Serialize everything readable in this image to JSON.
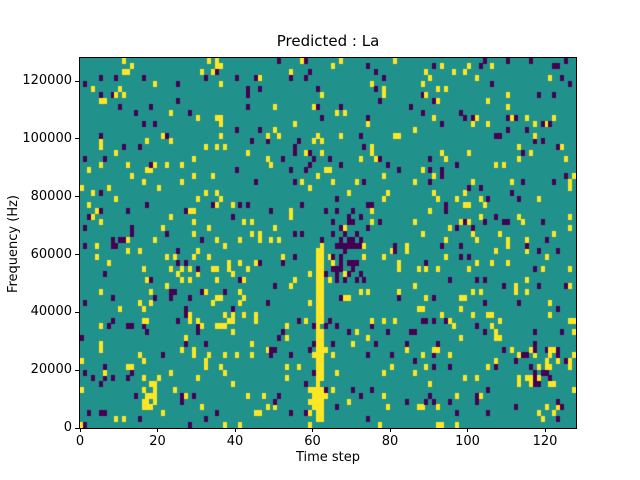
{
  "chart_data": {
    "type": "heatmap",
    "title": "Predicted : La",
    "xlabel": "Time step",
    "ylabel": "Frequency (Hz)",
    "x_range": [
      0,
      128
    ],
    "y_range": [
      0,
      128000
    ],
    "x_ticks": [
      0,
      20,
      40,
      60,
      80,
      100,
      120
    ],
    "y_ticks": [
      0,
      20000,
      40000,
      60000,
      80000,
      100000,
      120000
    ],
    "grid": {
      "cols": 128,
      "rows": 64
    },
    "colormap": {
      "name": "viridis-like-3-level",
      "background": "#21918c",
      "high": "#fde725",
      "low": "#440154"
    },
    "noise": {
      "seed": 7,
      "yellow_density": 0.05,
      "purple_density": 0.038
    },
    "features": [
      {
        "name": "dense-yellow-column",
        "seed": 3,
        "x0": 61,
        "x1": 62,
        "row0": 1,
        "row1": 30,
        "color": "yellow",
        "density": 0.9
      },
      {
        "name": "yellow-column-base",
        "seed": 4,
        "x0": 59,
        "x1": 63,
        "row0": 2,
        "row1": 6,
        "color": "yellow",
        "density": 0.55
      },
      {
        "name": "purple-streak-cluster",
        "seed": 5,
        "x0": 65,
        "x1": 72,
        "row0": 26,
        "row1": 37,
        "color": "purple",
        "density": 0.28
      },
      {
        "name": "bottom-left-yellow-blob",
        "seed": 6,
        "x0": 16,
        "x1": 19,
        "row0": 3,
        "row1": 8,
        "color": "yellow",
        "density": 0.65
      },
      {
        "name": "right-side-mixed-cluster",
        "seed": 8,
        "x0": 113,
        "x1": 126,
        "row0": 7,
        "row1": 13,
        "color": "mixed",
        "density": 0.33
      },
      {
        "name": "mid-left-yellow-scatter",
        "seed": 9,
        "x0": 24,
        "x1": 42,
        "row0": 18,
        "row1": 32,
        "color": "mixed",
        "density": 0.1
      }
    ],
    "legend": null,
    "gridlines": false
  }
}
